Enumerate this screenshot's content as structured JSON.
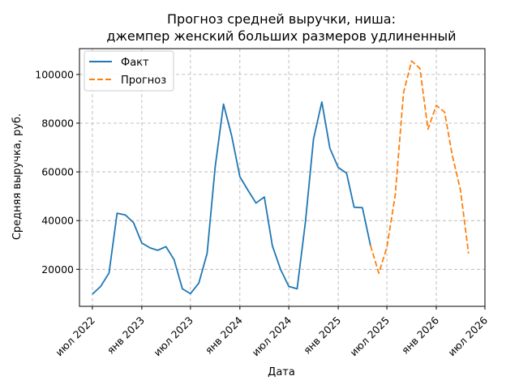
{
  "chart_data": {
    "type": "line",
    "title_lines": [
      "Прогноз средней выручки, ниша:",
      "джемпер женский больших размеров удлиненный"
    ],
    "xlabel": "Дата",
    "ylabel": "Средняя выручка, руб.",
    "grid": true,
    "legend_position": "top-left",
    "x_ticks": [
      {
        "date": "2022-07-01",
        "label": "июл 2022"
      },
      {
        "date": "2023-01-01",
        "label": "янв 2023"
      },
      {
        "date": "2023-07-01",
        "label": "июл 2023"
      },
      {
        "date": "2024-01-01",
        "label": "янв 2024"
      },
      {
        "date": "2024-07-01",
        "label": "июл 2024"
      },
      {
        "date": "2025-01-01",
        "label": "янв 2025"
      },
      {
        "date": "2025-07-01",
        "label": "июл 2025"
      },
      {
        "date": "2026-01-01",
        "label": "янв 2026"
      },
      {
        "date": "2026-07-01",
        "label": "июл 2026"
      }
    ],
    "xlim": [
      "2022-05-14",
      "2026-07-01"
    ],
    "y_ticks": [
      20000,
      40000,
      60000,
      80000,
      100000
    ],
    "ylim": [
      4800,
      110600
    ],
    "series": [
      {
        "name": "Факт",
        "color": "#1f77b4",
        "style": "solid",
        "points": [
          [
            "2022-07-01",
            9800
          ],
          [
            "2022-08-01",
            13000
          ],
          [
            "2022-09-01",
            18500
          ],
          [
            "2022-10-01",
            43000
          ],
          [
            "2022-11-01",
            42300
          ],
          [
            "2022-12-01",
            39200
          ],
          [
            "2023-01-01",
            30800
          ],
          [
            "2023-02-01",
            28800
          ],
          [
            "2023-03-01",
            27800
          ],
          [
            "2023-04-01",
            29300
          ],
          [
            "2023-05-01",
            24000
          ],
          [
            "2023-06-01",
            12000
          ],
          [
            "2023-07-01",
            10000
          ],
          [
            "2023-08-01",
            14300
          ],
          [
            "2023-09-01",
            26500
          ],
          [
            "2023-10-01",
            62000
          ],
          [
            "2023-11-01",
            87800
          ],
          [
            "2023-12-01",
            75000
          ],
          [
            "2024-01-01",
            58000
          ],
          [
            "2024-02-01",
            52300
          ],
          [
            "2024-03-01",
            47200
          ],
          [
            "2024-04-01",
            49700
          ],
          [
            "2024-05-01",
            29600
          ],
          [
            "2024-06-01",
            19800
          ],
          [
            "2024-07-01",
            13000
          ],
          [
            "2024-08-01",
            12000
          ],
          [
            "2024-09-01",
            39500
          ],
          [
            "2024-10-01",
            73500
          ],
          [
            "2024-11-01",
            88700
          ],
          [
            "2024-12-01",
            69700
          ],
          [
            "2025-01-01",
            61800
          ],
          [
            "2025-02-01",
            59500
          ],
          [
            "2025-03-01",
            45500
          ],
          [
            "2025-04-01",
            45300
          ],
          [
            "2025-05-01",
            29800
          ]
        ]
      },
      {
        "name": "Прогноз",
        "color": "#ff7f0e",
        "style": "dashed",
        "points": [
          [
            "2025-05-01",
            29800
          ],
          [
            "2025-06-01",
            18400
          ],
          [
            "2025-07-01",
            29000
          ],
          [
            "2025-08-01",
            50300
          ],
          [
            "2025-09-01",
            92500
          ],
          [
            "2025-10-01",
            105500
          ],
          [
            "2025-11-01",
            102500
          ],
          [
            "2025-12-01",
            77500
          ],
          [
            "2026-01-01",
            87300
          ],
          [
            "2026-02-01",
            84500
          ],
          [
            "2026-03-01",
            67000
          ],
          [
            "2026-04-01",
            52500
          ],
          [
            "2026-05-01",
            26500
          ]
        ]
      }
    ]
  }
}
